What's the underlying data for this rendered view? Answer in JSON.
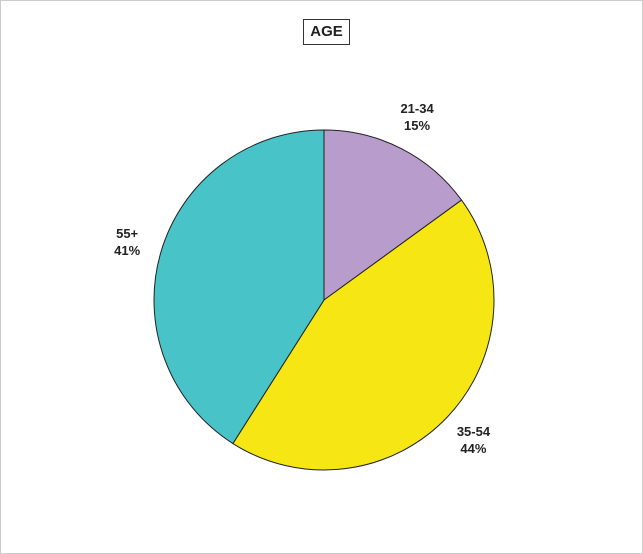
{
  "chart_data": {
    "type": "pie",
    "title": "AGE",
    "categories": [
      "21-34",
      "35-54",
      "55+"
    ],
    "values": [
      15,
      44,
      41
    ],
    "value_labels": [
      "15%",
      "44%",
      "41%"
    ],
    "colors": [
      "#b89ccb",
      "#f5e614",
      "#48c3c8"
    ]
  }
}
